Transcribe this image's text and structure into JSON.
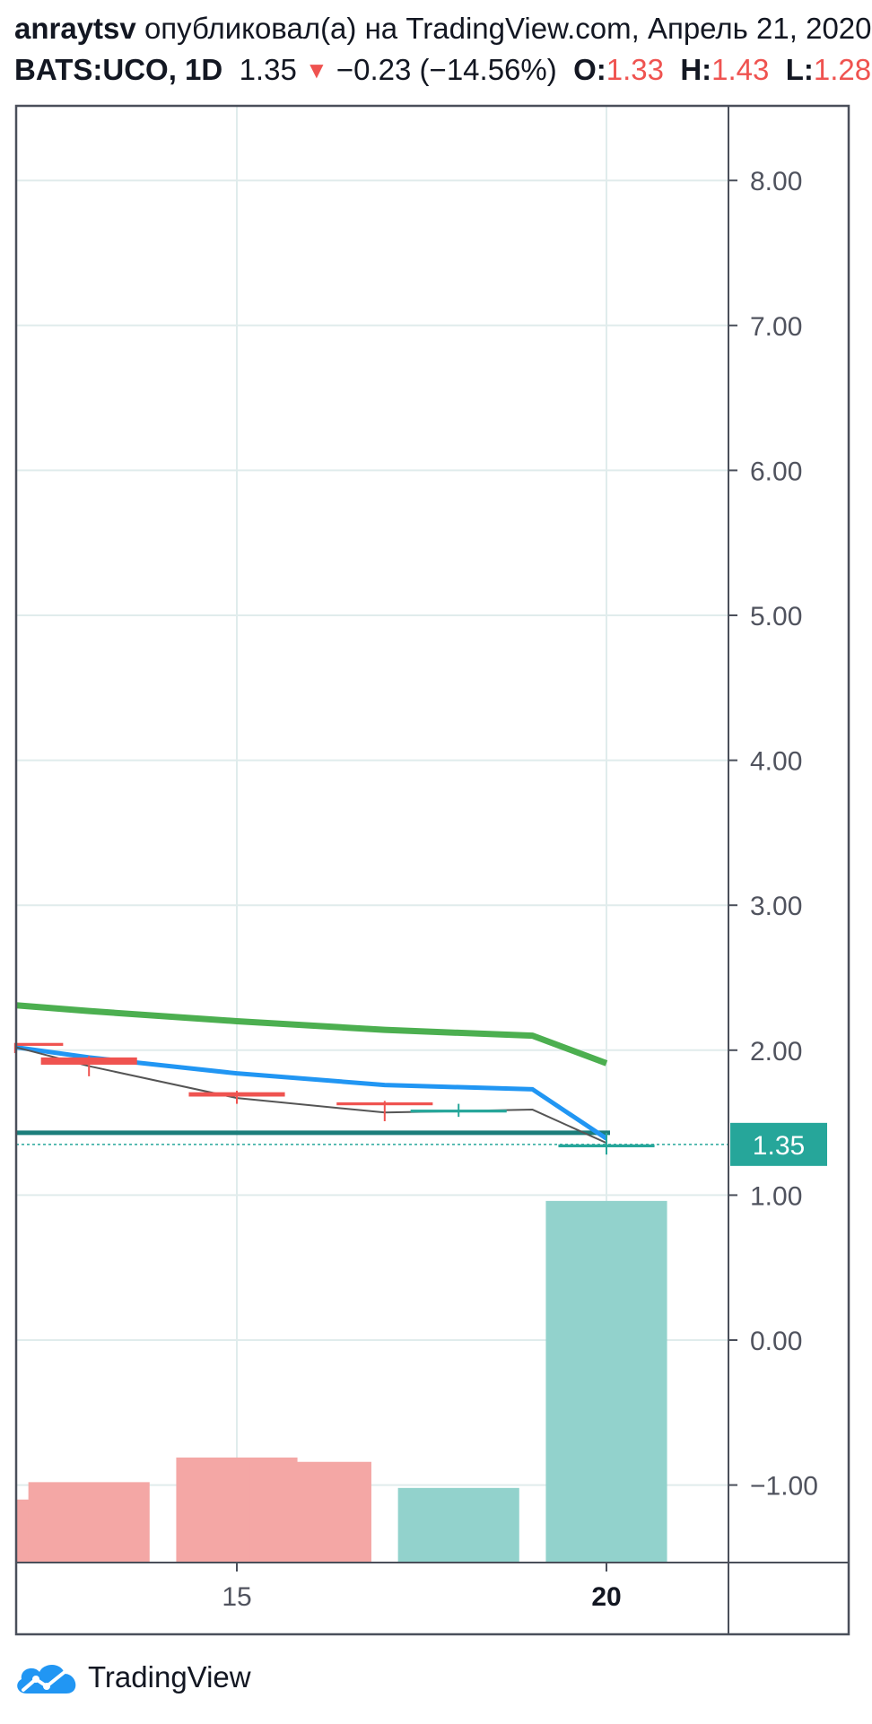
{
  "header": {
    "author": "anraytsv",
    "published_text": "опубликовал(а) на TradingView.com, Апрель 21, 2020",
    "symbol": "BATS:UCO, 1D",
    "last": "1.35",
    "change_arrow": "▼",
    "change": "−0.23 (−14.56%)",
    "open_label": "O:",
    "open_value": "1.33",
    "high_label": "H:",
    "high_value": "1.43",
    "low_label": "L:",
    "low_value": "1.28"
  },
  "footer": {
    "brand": "TradingView"
  },
  "colors": {
    "up": "#26a69a",
    "down": "#ef5350",
    "vol_up": "#92d2cc",
    "vol_down": "#f4a7a5",
    "ma_blue": "#2196f3",
    "ma_green": "#4caf50",
    "ma_dark": "#555555",
    "level": "#1b7e7b",
    "price_badge": "#26a69a",
    "grid": "#e0ecec",
    "frame": "#4a4f5a"
  },
  "chart_data": {
    "type": "candlestick",
    "yticks": [
      "8.00",
      "7.00",
      "6.00",
      "5.00",
      "4.00",
      "3.00",
      "2.00",
      "1.00",
      "0.00",
      "−1.00"
    ],
    "ylim": [
      -1.52,
      8.72
    ],
    "xticks": [
      {
        "label": "15",
        "x": 15,
        "bold": false
      },
      {
        "label": "20",
        "x": 20,
        "bold": true
      }
    ],
    "price_label": "1.35",
    "price_line": 1.35,
    "level_line": 1.43,
    "candles": [
      {
        "x": 12,
        "o": 2.05,
        "h": 2.05,
        "l": 1.98,
        "c": 2.03,
        "dir": "down"
      },
      {
        "x": 13,
        "o": 1.95,
        "h": 1.96,
        "l": 1.82,
        "c": 1.9,
        "dir": "down"
      },
      {
        "x": 15,
        "o": 1.71,
        "h": 1.72,
        "l": 1.63,
        "c": 1.68,
        "dir": "down"
      },
      {
        "x": 17,
        "o": 1.64,
        "h": 1.65,
        "l": 1.51,
        "c": 1.62,
        "dir": "down"
      },
      {
        "x": 18,
        "o": 1.57,
        "h": 1.63,
        "l": 1.54,
        "c": 1.59,
        "dir": "up"
      },
      {
        "x": 20,
        "o": 1.33,
        "h": 1.43,
        "l": 1.28,
        "c": 1.35,
        "dir": "up"
      }
    ],
    "volume": [
      {
        "x": 12,
        "top": -1.1,
        "dir": "down"
      },
      {
        "x": 13,
        "top": -0.98,
        "dir": "down"
      },
      {
        "x": 15,
        "top": -0.81,
        "dir": "down"
      },
      {
        "x": 16,
        "top": -0.84,
        "dir": "down"
      },
      {
        "x": 18,
        "top": -1.02,
        "dir": "up"
      },
      {
        "x": 20,
        "top": 0.96,
        "dir": "up"
      }
    ],
    "series": [
      {
        "points": [
          [
            11.5,
            2.02
          ],
          [
            13,
            1.95
          ],
          [
            15,
            1.84
          ],
          [
            17,
            1.76
          ],
          [
            19,
            1.73
          ],
          [
            20,
            1.39
          ]
        ]
      },
      {
        "points": [
          [
            11.5,
            2.31
          ],
          [
            13,
            2.27
          ],
          [
            15,
            2.2
          ],
          [
            17,
            2.14
          ],
          [
            19,
            2.1
          ],
          [
            20,
            1.91
          ]
        ]
      },
      {
        "points": [
          [
            11.5,
            2.02
          ],
          [
            13,
            1.89
          ],
          [
            15,
            1.67
          ],
          [
            17,
            1.57
          ],
          [
            19,
            1.59
          ],
          [
            20,
            1.36
          ]
        ]
      }
    ],
    "grid": true
  }
}
